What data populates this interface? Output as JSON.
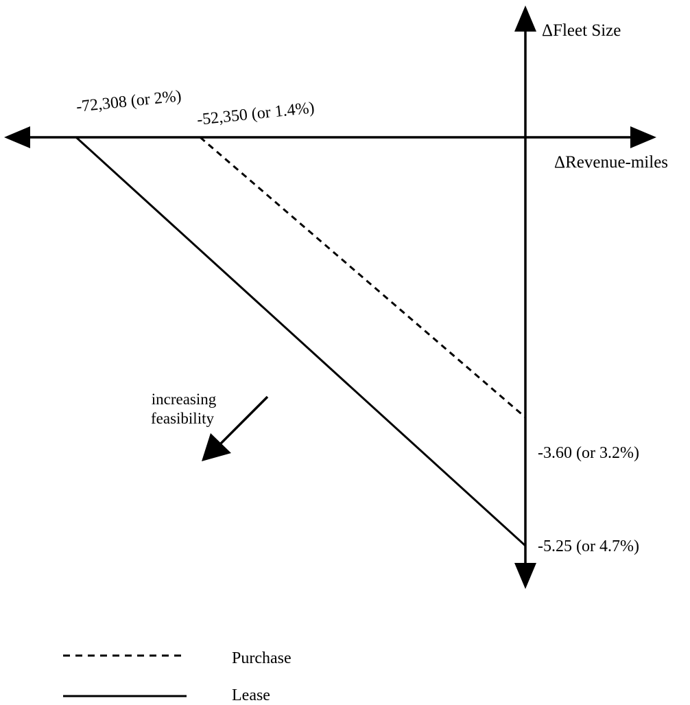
{
  "chart_data": {
    "type": "line",
    "x_axis_label": "ΔRevenue-miles",
    "y_axis_label": "ΔFleet Size",
    "series": [
      {
        "name": "Purchase",
        "style": "dashed",
        "points": [
          {
            "x": -52350,
            "y": 0
          },
          {
            "x": 0,
            "y": -3.6
          }
        ]
      },
      {
        "name": "Lease",
        "style": "solid",
        "points": [
          {
            "x": -72308,
            "y": 0
          },
          {
            "x": 0,
            "y": -5.25
          }
        ]
      }
    ],
    "x_intercept_labels": [
      "-72,308 (or 2%)",
      "-52,350 (or 1.4%)"
    ],
    "y_intercept_labels": [
      "-3.60  (or 3.2%)",
      "-5.25 (or 4.7%)"
    ],
    "annotation": {
      "line1": "increasing",
      "line2": "feasibility"
    },
    "legend": [
      {
        "label": "Purchase",
        "style": "dashed"
      },
      {
        "label": "Lease",
        "style": "solid"
      }
    ],
    "color": "#000000",
    "grid": false
  }
}
